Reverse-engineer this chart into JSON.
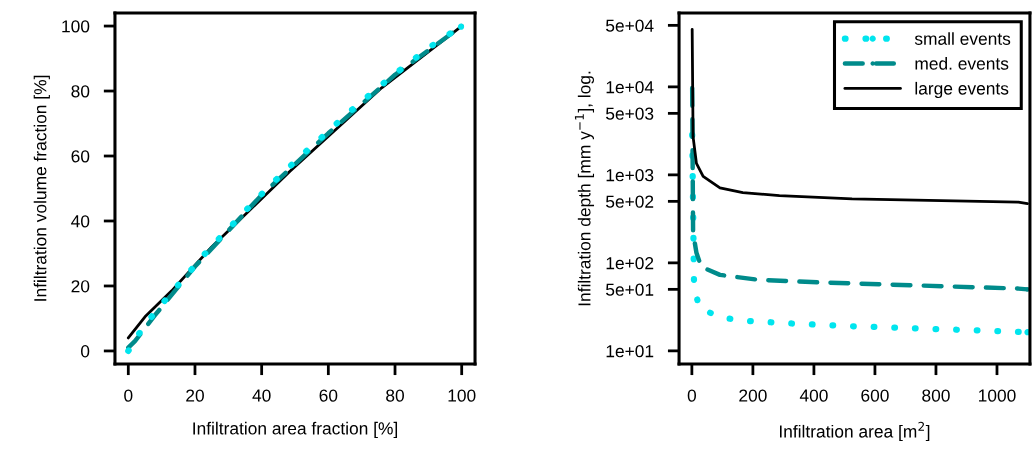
{
  "chart_data": [
    {
      "type": "line",
      "xlabel": "Infiltration area fraction [%]",
      "ylabel": "Infiltration volume fraction [%]",
      "xlim": [
        -4,
        104
      ],
      "ylim": [
        -4,
        104
      ],
      "xticks": [
        0,
        20,
        40,
        60,
        80,
        100
      ],
      "yticks": [
        0,
        20,
        40,
        60,
        80,
        100
      ],
      "grid": false,
      "legend": false,
      "marker": "none",
      "series": [
        {
          "color": "#000000",
          "line_style": "solid",
          "x": [
            0,
            5,
            13,
            25,
            48.5,
            76,
            100
          ],
          "values": [
            4,
            10.5,
            18.5,
            32,
            55.3,
            81,
            100
          ]
        },
        {
          "color": "#008b8b",
          "line_style": "dashed",
          "x": [
            0,
            2,
            8,
            20,
            40,
            60,
            80,
            100
          ],
          "values": [
            1,
            3,
            11,
            26,
            48,
            67,
            85,
            100
          ]
        },
        {
          "color": "#00e5ee",
          "line_style": "dotted",
          "x": [
            0,
            3.9,
            8.3,
            13.1,
            18,
            22.8,
            27.8,
            32.9,
            38,
            43.2,
            48.5,
            53.9,
            59.5,
            64.8,
            70.5,
            76.1,
            81.9,
            87.7,
            93.7,
            99.8
          ],
          "values": [
            0,
            6.4,
            12.3,
            18.1,
            23.9,
            29.7,
            35.2,
            40.7,
            46.2,
            51.6,
            56.8,
            62,
            67.1,
            72.2,
            77.2,
            82,
            86.8,
            91.4,
            95.9,
            99.8
          ]
        }
      ]
    },
    {
      "type": "line",
      "xlabel": "Infiltration area [m$^{2}$]",
      "ylabel": "Infiltration depth [mm y$^{−1}$], log.",
      "log": "y",
      "xlim": [
        -42,
        1108
      ],
      "ylim": [
        7.1,
        69000
      ],
      "xticks": [
        0,
        200,
        400,
        600,
        800,
        1000
      ],
      "yticks": [
        {
          "value": 10,
          "label": "1e+01"
        },
        {
          "value": 50,
          "label": "5e+01"
        },
        {
          "value": 100,
          "label": "1e+02"
        },
        {
          "value": 500,
          "label": "5e+02"
        },
        {
          "value": 1000,
          "label": "1e+03"
        },
        {
          "value": 5000,
          "label": "5e+03"
        },
        {
          "value": 10000,
          "label": "1e+04"
        },
        {
          "value": 50000,
          "label": "5e+04"
        }
      ],
      "grid": false,
      "legend": "top right",
      "marker": "none",
      "series": [
        {
          "name": "small events",
          "color": "#00e5ee",
          "line_style": "dotted",
          "x": [
            1,
            2,
            3,
            4,
            5,
            6,
            7,
            23,
            93,
            174,
            334,
            495,
            655,
            816,
            979,
            1100
          ],
          "values": [
            2850,
            1510,
            790,
            410,
            217,
            113,
            59,
            31,
            24,
            22,
            20.4,
            19.2,
            18.4,
            17.6,
            16.9,
            16.3
          ]
        },
        {
          "name": "med. events",
          "color": "#008b8b",
          "line_style": "dashed",
          "x": [
            1,
            4,
            15,
            31,
            92,
            222,
            417,
            1070,
            1100
          ],
          "values": [
            9700,
            220,
            130,
            90,
            73,
            64,
            60,
            51,
            50
          ]
        },
        {
          "name": "large events",
          "color": "#000000",
          "line_style": "solid",
          "x": [
            1,
            4,
            15,
            37,
            92,
            167,
            287,
            525,
            1070,
            1100
          ],
          "values": [
            45000,
            2700,
            1350,
            960,
            710,
            630,
            580,
            533,
            490,
            470
          ]
        }
      ]
    }
  ]
}
